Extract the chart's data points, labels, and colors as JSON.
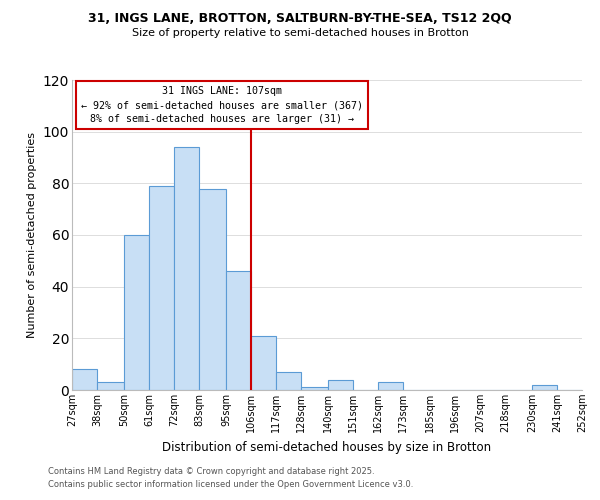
{
  "title1": "31, INGS LANE, BROTTON, SALTBURN-BY-THE-SEA, TS12 2QQ",
  "title2": "Size of property relative to semi-detached houses in Brotton",
  "xlabel": "Distribution of semi-detached houses by size in Brotton",
  "ylabel": "Number of semi-detached properties",
  "bin_edges": [
    27,
    38,
    50,
    61,
    72,
    83,
    95,
    106,
    117,
    128,
    140,
    151,
    162,
    173,
    185,
    196,
    207,
    218,
    230,
    241,
    252
  ],
  "bar_heights": [
    8,
    3,
    60,
    79,
    94,
    78,
    46,
    21,
    7,
    1,
    4,
    0,
    3,
    0,
    0,
    0,
    0,
    0,
    2,
    0
  ],
  "bar_color": "#c8dff5",
  "bar_edge_color": "#5b9bd5",
  "vline_x": 106,
  "vline_color": "#cc0000",
  "ylim": [
    0,
    120
  ],
  "yticks": [
    0,
    20,
    40,
    60,
    80,
    100,
    120
  ],
  "annotation_title": "31 INGS LANE: 107sqm",
  "annotation_line1": "← 92% of semi-detached houses are smaller (367)",
  "annotation_line2": "8% of semi-detached houses are larger (31) →",
  "annotation_box_color": "#ffffff",
  "annotation_border_color": "#cc0000",
  "footer1": "Contains HM Land Registry data © Crown copyright and database right 2025.",
  "footer2": "Contains public sector information licensed under the Open Government Licence v3.0.",
  "x_tick_labels": [
    "27sqm",
    "38sqm",
    "50sqm",
    "61sqm",
    "72sqm",
    "83sqm",
    "95sqm",
    "106sqm",
    "117sqm",
    "128sqm",
    "140sqm",
    "151sqm",
    "162sqm",
    "173sqm",
    "185sqm",
    "196sqm",
    "207sqm",
    "218sqm",
    "230sqm",
    "241sqm",
    "252sqm"
  ],
  "background_color": "#ffffff",
  "grid_color": "#dddddd"
}
